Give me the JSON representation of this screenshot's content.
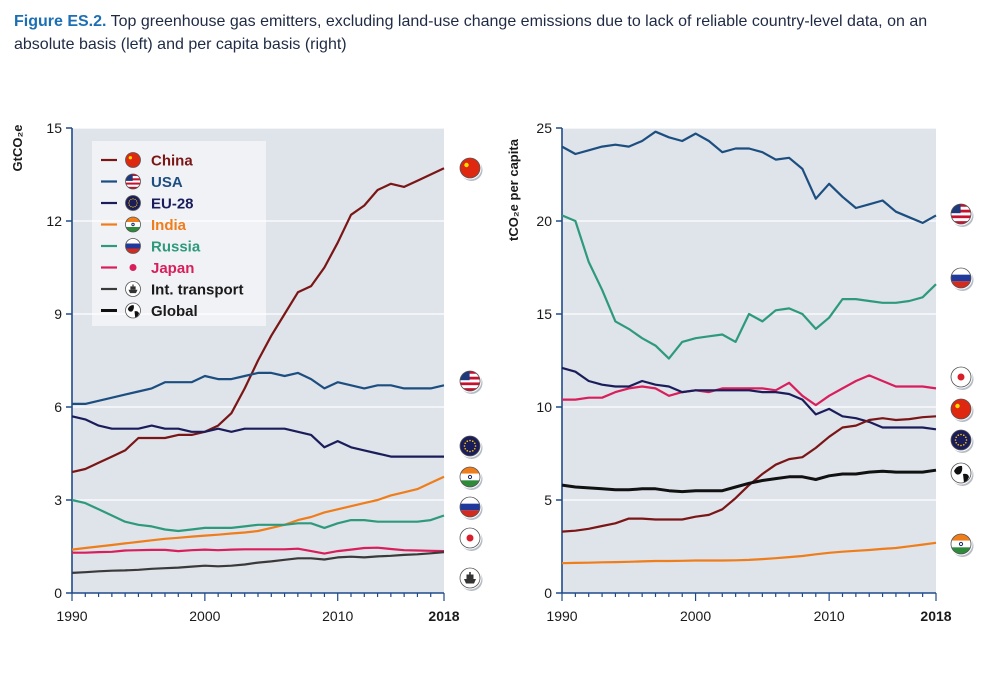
{
  "caption": {
    "lead": "Figure ES.2.",
    "text": " Top greenhouse gas emitters, excluding land-use change emissions due to lack of reliable country-level data, on an absolute basis (left) and per capita basis (right)"
  },
  "colors": {
    "China": "#7a1616",
    "USA": "#1c4e80",
    "EU-28": "#1b1d5a",
    "India": "#ef7d1a",
    "Russia": "#2e9a7c",
    "Japan": "#d81e5b",
    "Int. transport": "#3a3a3a",
    "Global": "#111111",
    "plot_bg": "#dfe3ea",
    "grid": "#ffffff",
    "axis": "#1f4a8a"
  },
  "chart_data": [
    {
      "type": "line",
      "ylabel": "GtCO₂e",
      "ylim": [
        0,
        15
      ],
      "yticks": [
        "0",
        "3",
        "6",
        "9",
        "12",
        "15"
      ],
      "xlim": [
        1990,
        2018
      ],
      "xticks": [
        "1990",
        "2000",
        "2010",
        "2018"
      ],
      "grid": true,
      "legend": "top-left",
      "x": [
        1990,
        1991,
        1992,
        1993,
        1994,
        1995,
        1996,
        1997,
        1998,
        1999,
        2000,
        2001,
        2002,
        2003,
        2004,
        2005,
        2006,
        2007,
        2008,
        2009,
        2010,
        2011,
        2012,
        2013,
        2014,
        2015,
        2016,
        2017,
        2018
      ],
      "series": [
        {
          "name": "China",
          "icon": "china-flag-icon",
          "values": [
            3.9,
            4.0,
            4.2,
            4.4,
            4.6,
            5.0,
            5.0,
            5.0,
            5.1,
            5.1,
            5.2,
            5.4,
            5.8,
            6.6,
            7.5,
            8.3,
            9.0,
            9.7,
            9.9,
            10.5,
            11.3,
            12.2,
            12.5,
            13.0,
            13.2,
            13.1,
            13.3,
            13.5,
            13.7
          ]
        },
        {
          "name": "USA",
          "icon": "usa-flag-icon",
          "values": [
            6.1,
            6.1,
            6.2,
            6.3,
            6.4,
            6.5,
            6.6,
            6.8,
            6.8,
            6.8,
            7.0,
            6.9,
            6.9,
            7.0,
            7.1,
            7.1,
            7.0,
            7.1,
            6.9,
            6.6,
            6.8,
            6.7,
            6.6,
            6.7,
            6.7,
            6.6,
            6.6,
            6.6,
            6.7
          ]
        },
        {
          "name": "EU-28",
          "icon": "eu-flag-icon",
          "values": [
            5.7,
            5.6,
            5.4,
            5.3,
            5.3,
            5.3,
            5.4,
            5.3,
            5.3,
            5.2,
            5.2,
            5.3,
            5.2,
            5.3,
            5.3,
            5.3,
            5.3,
            5.2,
            5.1,
            4.7,
            4.9,
            4.7,
            4.6,
            4.5,
            4.4,
            4.4,
            4.4,
            4.4,
            4.4
          ]
        },
        {
          "name": "India",
          "icon": "india-flag-icon",
          "values": [
            1.4,
            1.45,
            1.5,
            1.55,
            1.6,
            1.65,
            1.7,
            1.75,
            1.78,
            1.82,
            1.85,
            1.88,
            1.92,
            1.95,
            2.0,
            2.1,
            2.2,
            2.35,
            2.45,
            2.6,
            2.7,
            2.8,
            2.9,
            3.0,
            3.15,
            3.25,
            3.35,
            3.55,
            3.75
          ]
        },
        {
          "name": "Russia",
          "icon": "russia-flag-icon",
          "values": [
            3.0,
            2.9,
            2.7,
            2.5,
            2.3,
            2.2,
            2.15,
            2.05,
            2.0,
            2.05,
            2.1,
            2.1,
            2.1,
            2.15,
            2.2,
            2.2,
            2.2,
            2.25,
            2.25,
            2.1,
            2.25,
            2.35,
            2.35,
            2.3,
            2.3,
            2.3,
            2.3,
            2.35,
            2.5
          ]
        },
        {
          "name": "Japan",
          "icon": "japan-flag-icon",
          "values": [
            1.3,
            1.3,
            1.32,
            1.33,
            1.37,
            1.38,
            1.39,
            1.39,
            1.35,
            1.38,
            1.4,
            1.38,
            1.4,
            1.41,
            1.41,
            1.41,
            1.41,
            1.43,
            1.35,
            1.27,
            1.35,
            1.4,
            1.45,
            1.46,
            1.42,
            1.38,
            1.37,
            1.36,
            1.35
          ]
        },
        {
          "name": "Int. transport",
          "icon": "ship-icon",
          "values": [
            0.65,
            0.67,
            0.7,
            0.72,
            0.73,
            0.75,
            0.78,
            0.8,
            0.82,
            0.85,
            0.88,
            0.86,
            0.88,
            0.92,
            0.98,
            1.02,
            1.07,
            1.12,
            1.12,
            1.08,
            1.15,
            1.17,
            1.15,
            1.18,
            1.2,
            1.23,
            1.25,
            1.28,
            1.32
          ]
        }
      ]
    },
    {
      "type": "line",
      "ylabel": "tCO₂e per capita",
      "ylim": [
        0,
        25
      ],
      "yticks": [
        "0",
        "5",
        "10",
        "15",
        "20",
        "25"
      ],
      "xlim": [
        1990,
        2018
      ],
      "xticks": [
        "1990",
        "2000",
        "2010",
        "2018"
      ],
      "grid": true,
      "x": [
        1990,
        1991,
        1992,
        1993,
        1994,
        1995,
        1996,
        1997,
        1998,
        1999,
        2000,
        2001,
        2002,
        2003,
        2004,
        2005,
        2006,
        2007,
        2008,
        2009,
        2010,
        2011,
        2012,
        2013,
        2014,
        2015,
        2016,
        2017,
        2018
      ],
      "series": [
        {
          "name": "USA",
          "icon": "usa-flag-icon",
          "values": [
            24.0,
            23.6,
            23.8,
            24.0,
            24.1,
            24.0,
            24.3,
            24.8,
            24.5,
            24.3,
            24.7,
            24.3,
            23.7,
            23.9,
            23.9,
            23.7,
            23.3,
            23.4,
            22.8,
            21.2,
            22.0,
            21.3,
            20.7,
            20.9,
            21.1,
            20.5,
            20.2,
            19.9,
            20.3
          ]
        },
        {
          "name": "Russia",
          "icon": "russia-flag-icon",
          "values": [
            20.3,
            20.0,
            17.8,
            16.3,
            14.6,
            14.2,
            13.7,
            13.3,
            12.6,
            13.5,
            13.7,
            13.8,
            13.9,
            13.5,
            15.0,
            14.6,
            15.2,
            15.3,
            15.0,
            14.2,
            14.8,
            15.8,
            15.8,
            15.7,
            15.6,
            15.6,
            15.7,
            15.9,
            16.6
          ]
        },
        {
          "name": "Japan",
          "icon": "japan-flag-icon",
          "values": [
            10.4,
            10.4,
            10.5,
            10.5,
            10.8,
            11.0,
            11.1,
            11.0,
            10.6,
            10.8,
            10.9,
            10.8,
            11.0,
            11.0,
            11.0,
            11.0,
            10.9,
            11.3,
            10.6,
            10.1,
            10.6,
            11.0,
            11.4,
            11.7,
            11.4,
            11.1,
            11.1,
            11.1,
            11.0
          ]
        },
        {
          "name": "EU-28",
          "icon": "eu-flag-icon",
          "values": [
            12.1,
            11.9,
            11.4,
            11.2,
            11.1,
            11.1,
            11.4,
            11.2,
            11.1,
            10.8,
            10.9,
            10.9,
            10.9,
            10.9,
            10.9,
            10.8,
            10.8,
            10.7,
            10.4,
            9.6,
            9.9,
            9.5,
            9.4,
            9.2,
            8.9,
            8.9,
            8.9,
            8.9,
            8.8
          ]
        },
        {
          "name": "China",
          "icon": "china-flag-icon",
          "values": [
            3.3,
            3.35,
            3.45,
            3.6,
            3.75,
            4.0,
            4.0,
            3.95,
            3.95,
            3.95,
            4.1,
            4.2,
            4.5,
            5.1,
            5.8,
            6.4,
            6.9,
            7.2,
            7.3,
            7.8,
            8.4,
            8.9,
            9.0,
            9.3,
            9.4,
            9.3,
            9.35,
            9.45,
            9.5
          ]
        },
        {
          "name": "Global",
          "icon": "globe-icon",
          "values": [
            5.8,
            5.7,
            5.65,
            5.6,
            5.55,
            5.55,
            5.6,
            5.6,
            5.5,
            5.45,
            5.5,
            5.5,
            5.5,
            5.7,
            5.9,
            6.05,
            6.15,
            6.25,
            6.25,
            6.1,
            6.3,
            6.4,
            6.4,
            6.5,
            6.55,
            6.5,
            6.5,
            6.5,
            6.6
          ]
        },
        {
          "name": "India",
          "icon": "india-flag-icon",
          "values": [
            1.6,
            1.62,
            1.63,
            1.65,
            1.66,
            1.68,
            1.7,
            1.72,
            1.72,
            1.73,
            1.75,
            1.75,
            1.75,
            1.76,
            1.78,
            1.82,
            1.87,
            1.93,
            1.99,
            2.08,
            2.16,
            2.22,
            2.27,
            2.31,
            2.37,
            2.42,
            2.51,
            2.6,
            2.7
          ]
        }
      ]
    }
  ],
  "legend": [
    {
      "label": "China",
      "icon": "china-flag-icon"
    },
    {
      "label": "USA",
      "icon": "usa-flag-icon"
    },
    {
      "label": "EU-28",
      "icon": "eu-flag-icon"
    },
    {
      "label": "India",
      "icon": "india-flag-icon"
    },
    {
      "label": "Russia",
      "icon": "russia-flag-icon"
    },
    {
      "label": "Japan",
      "icon": "japan-flag-icon"
    },
    {
      "label": "Int. transport",
      "icon": "ship-icon"
    },
    {
      "label": "Global",
      "icon": "globe-icon"
    }
  ]
}
